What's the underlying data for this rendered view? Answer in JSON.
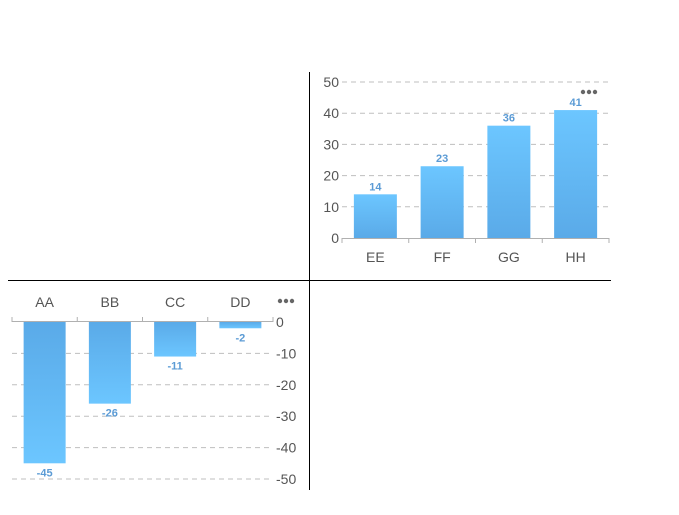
{
  "colors": {
    "bar_top": "#6cc6ff",
    "bar_bottom": "#5aaae8",
    "label": "#5b9bd5"
  },
  "chart_data": [
    {
      "type": "bar",
      "categories": [
        "EE",
        "FF",
        "GG",
        "HH"
      ],
      "values": [
        14,
        23,
        36,
        41
      ],
      "ylim": [
        0,
        50
      ],
      "yticks": [
        0,
        10,
        20,
        30,
        40,
        50
      ],
      "grid": true,
      "menu_icon": "more-dots-icon"
    },
    {
      "type": "bar",
      "categories": [
        "AA",
        "BB",
        "CC",
        "DD"
      ],
      "values": [
        -45,
        -26,
        -11,
        -2
      ],
      "ylim": [
        -50,
        0
      ],
      "yticks": [
        0,
        -10,
        -20,
        -30,
        -40,
        -50
      ],
      "grid": true,
      "menu_icon": "more-dots-icon"
    }
  ]
}
